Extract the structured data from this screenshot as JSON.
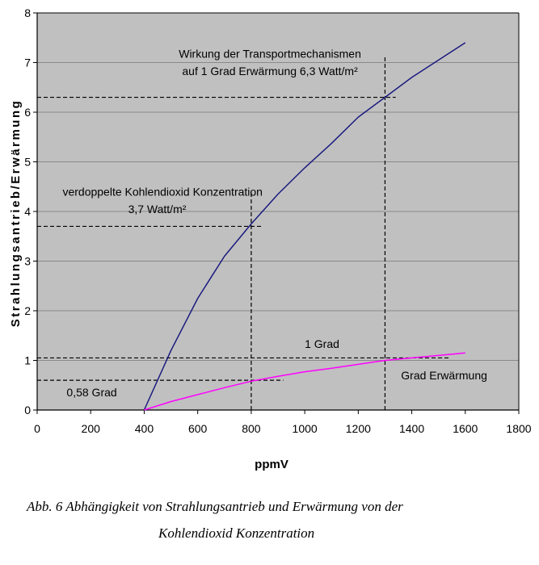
{
  "chart_data": {
    "type": "line",
    "xlabel": "ppmV",
    "ylabel": "Strahlungsantrieb/Erwärmung",
    "xlim": [
      0,
      1800
    ],
    "ylim": [
      0,
      8
    ],
    "xticks": [
      0,
      200,
      400,
      600,
      800,
      1000,
      1200,
      1400,
      1600,
      1800
    ],
    "yticks": [
      0,
      1,
      2,
      3,
      4,
      5,
      6,
      7,
      8
    ],
    "grid": "horizontal",
    "background": "#c0c0c0",
    "series": [
      {
        "name": "",
        "color": "#1a1a80",
        "x": [
          400,
          500,
          600,
          700,
          800,
          900,
          1000,
          1100,
          1200,
          1300,
          1400,
          1500,
          1600
        ],
        "y": [
          0.0,
          1.2,
          2.25,
          3.1,
          3.75,
          4.35,
          4.88,
          5.37,
          5.9,
          6.3,
          6.7,
          7.05,
          7.4
        ]
      },
      {
        "name": "",
        "color": "#ff00ff",
        "x": [
          400,
          500,
          600,
          700,
          800,
          900,
          1000,
          1100,
          1200,
          1300,
          1400,
          1500,
          1600
        ],
        "y": [
          0.0,
          0.17,
          0.31,
          0.45,
          0.58,
          0.68,
          0.77,
          0.84,
          0.92,
          1.0,
          1.05,
          1.1,
          1.15
        ]
      }
    ],
    "reference_lines": [
      {
        "orientation": "horizontal",
        "y": 6.3,
        "x_from": 0,
        "x_to": 1340
      },
      {
        "orientation": "vertical",
        "x": 1300,
        "y_from": 0,
        "y_to": 7.15
      },
      {
        "orientation": "horizontal",
        "y": 3.7,
        "x_from": 0,
        "x_to": 840
      },
      {
        "orientation": "vertical",
        "x": 800,
        "y_from": 0,
        "y_to": 4.4
      },
      {
        "orientation": "horizontal",
        "y": 1.05,
        "x_from": 0,
        "x_to": 1540
      },
      {
        "orientation": "horizontal",
        "y": 0.6,
        "x_from": 0,
        "x_to": 920
      }
    ],
    "annotations": [
      {
        "text": "Wirkung der Transportmechanismen",
        "x": 870,
        "y": 7.1,
        "align": "middle"
      },
      {
        "text": "auf 1 Grad Erwärmung 6,3 Watt/m²",
        "x": 870,
        "y": 6.75,
        "align": "middle"
      },
      {
        "text": "verdoppelte  Kohlendioxid Konzentration",
        "x": 95,
        "y": 4.32,
        "align": "start"
      },
      {
        "text": "3,7 Watt/m²",
        "x": 340,
        "y": 3.97,
        "align": "start"
      },
      {
        "text": "1 Grad",
        "x": 1000,
        "y": 1.25,
        "align": "start"
      },
      {
        "text": "Grad Erwärmung",
        "x": 1360,
        "y": 0.62,
        "align": "start"
      },
      {
        "text": "0,58 Grad",
        "x": 110,
        "y": 0.28,
        "align": "start"
      }
    ]
  },
  "caption": {
    "line1": "Abb. 6 Abhängigkeit von Strahlungsantrieb und Erwärmung von der",
    "line2": "Kohlendioxid Konzentration"
  }
}
